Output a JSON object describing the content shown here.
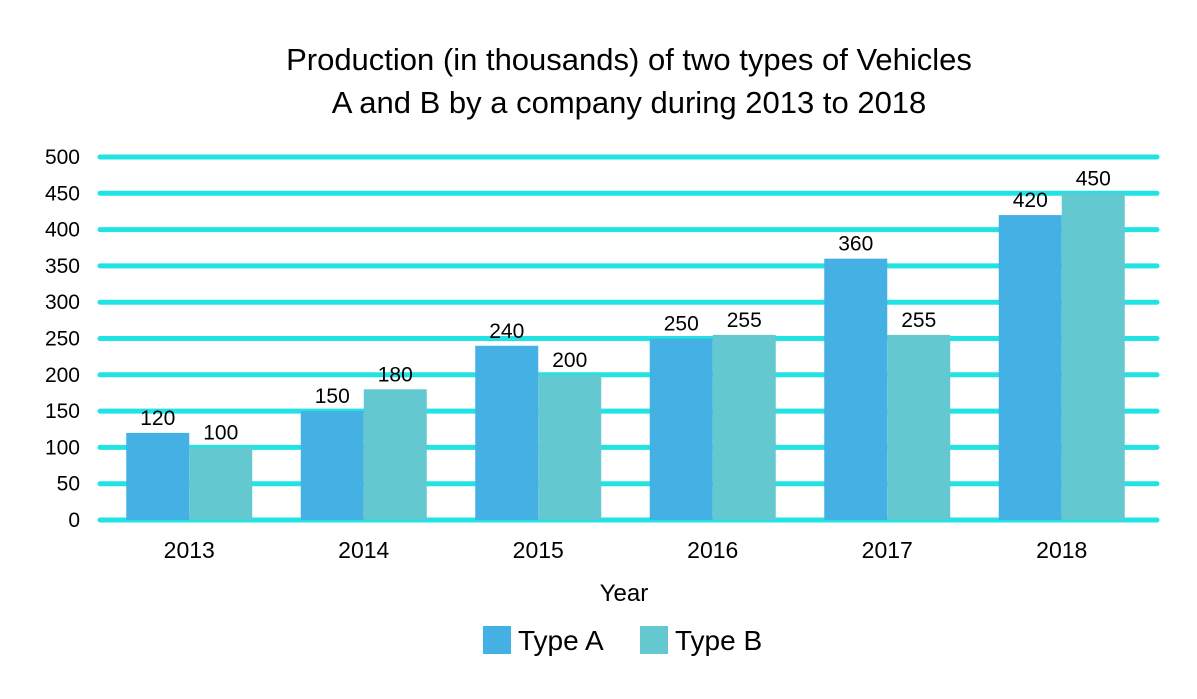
{
  "chart_data": {
    "type": "bar",
    "title_lines": [
      "Production (in thousands) of two types of Vehicles",
      "A and B by a company during 2013 to 2018"
    ],
    "xlabel": "Year",
    "ylabel": "",
    "ylim": [
      0,
      500
    ],
    "yticks": [
      0,
      50,
      100,
      150,
      200,
      250,
      300,
      350,
      400,
      450,
      500
    ],
    "categories": [
      "2013",
      "2014",
      "2015",
      "2016",
      "2017",
      "2018"
    ],
    "series": [
      {
        "name": "Type A",
        "color": "#45b0e3",
        "values": [
          120,
          150,
          240,
          250,
          360,
          420
        ]
      },
      {
        "name": "Type B",
        "color": "#63c8cf",
        "values": [
          100,
          180,
          200,
          255,
          255,
          450
        ]
      }
    ],
    "grid": true,
    "grid_color": "#22e3e3",
    "legend_position": "bottom"
  }
}
